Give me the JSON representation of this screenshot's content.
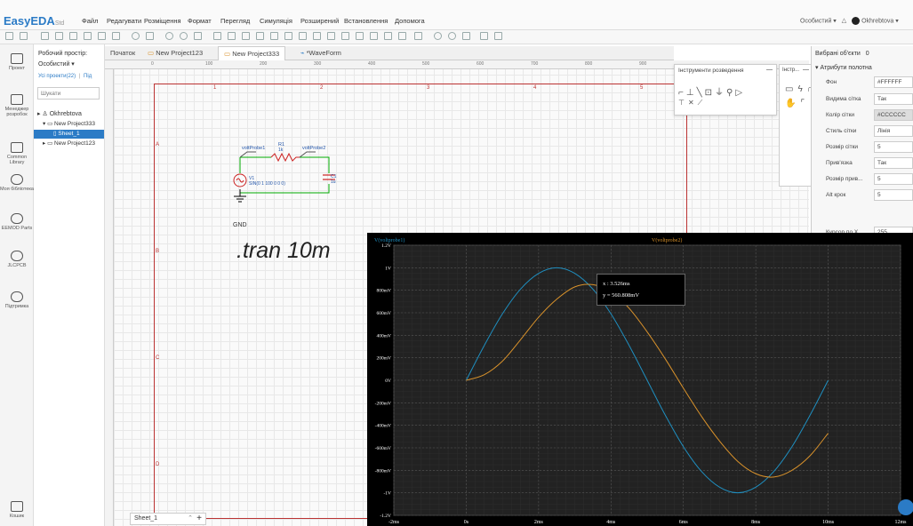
{
  "app": {
    "logo": "EasyEDA",
    "logo_sub": "Std",
    "menu": [
      "Файл",
      "Редагувати",
      "Розміщення",
      "Формат",
      "Перегляд",
      "Симуляція",
      "Розширений",
      "Встановлення",
      "Допомога"
    ],
    "user_menu": "Особистий ▾",
    "user_name": "Okhrebtova ▾"
  },
  "leftbar": [
    {
      "label": "Проект",
      "icon": "project-icon"
    },
    {
      "label": "Менеджер розробок",
      "icon": "design-manager-icon"
    },
    {
      "label": "Common Library",
      "icon": "common-library-icon"
    },
    {
      "label": "Моя бібліотека",
      "icon": "my-library-icon"
    },
    {
      "label": "EEMOD Parts",
      "icon": "parts-icon"
    },
    {
      "label": "JLCPCB",
      "icon": "jlcpcb-icon"
    },
    {
      "label": "Підтримка",
      "icon": "support-icon"
    },
    {
      "label": "Кошик",
      "icon": "trash-icon"
    }
  ],
  "panel": {
    "workspace_label": "Робочий простір:",
    "workspace_value": "Особистий ▾",
    "projects_link": "Усі проекти(22)",
    "sep": "|",
    "new_link": "Під",
    "search_placeholder": "Шукати",
    "tree": [
      {
        "label": "Okhrebtova",
        "level": 0
      },
      {
        "label": "New Project333",
        "level": 1
      },
      {
        "label": "Sheet_1",
        "level": 2,
        "selected": true
      },
      {
        "label": "New Project123",
        "level": 1
      }
    ]
  },
  "tabs": [
    "Початок",
    "New Project123",
    "New Project333",
    "*WaveForm"
  ],
  "active_tab": 2,
  "ruler_top": [
    "0",
    "100",
    "200",
    "300",
    "400",
    "500",
    "600",
    "700",
    "800",
    "900"
  ],
  "frame_numbers": [
    "1",
    "2",
    "3",
    "4",
    "5"
  ],
  "frame_letters": [
    "A",
    "B",
    "C",
    "D"
  ],
  "schematic": {
    "probe1": "voltProbe1",
    "probe2": "voltProbe2",
    "r_label": "R1",
    "r_value": "1k",
    "v_label": "V1",
    "v_value": "SIN(0 1 100 0 0 0)",
    "c_label": "C1",
    "c_value": "1u",
    "gnd": "GND",
    "directive": ".tran 10m"
  },
  "sheetbar": {
    "label": "Sheet_1",
    "add": "+"
  },
  "wiretools": {
    "title": "Інструменти розведення",
    "close": "—"
  },
  "drawtools": {
    "title": "Інстр...",
    "close": "—"
  },
  "rpanel": {
    "title": "Вибрані об'єкти",
    "count": "0",
    "section": "Атрибути полотна",
    "rows": [
      {
        "label": "Фон",
        "value": "#FFFFFF"
      },
      {
        "label": "Видима сітка",
        "value": "Так"
      },
      {
        "label": "Колір сітки",
        "value": "#CCCCCC"
      },
      {
        "label": "Стиль сітки",
        "value": "Лінія"
      },
      {
        "label": "Розмір сітки",
        "value": "5"
      },
      {
        "label": "Прив'язка",
        "value": "Так"
      },
      {
        "label": "Розмір прив...",
        "value": "5"
      },
      {
        "label": "Alt крок",
        "value": "5"
      }
    ],
    "cursor_label": "Курсор по X",
    "cursor_value": "255"
  },
  "wave": {
    "legend1": "V(voltprobe1)",
    "legend2": "V(voltprobe2)",
    "tooltip_x": "x : 3.526ms",
    "tooltip_y": "y = 560.808mV"
  },
  "chart_data": {
    "type": "line",
    "xlabel": "",
    "ylabel": "",
    "xlim": [
      -2,
      12
    ],
    "ylim": [
      -1.2,
      1.2
    ],
    "x_ticks": [
      "-2ms",
      "0s",
      "2ms",
      "4ms",
      "6ms",
      "8ms",
      "10ms",
      "12ms"
    ],
    "x_tick_values": [
      -2,
      0,
      2,
      4,
      6,
      8,
      10,
      12
    ],
    "y_ticks": [
      "1.2V",
      "1V",
      "800mV",
      "600mV",
      "400mV",
      "200mV",
      "0V",
      "-200mV",
      "-400mV",
      "-600mV",
      "-800mV",
      "-1V",
      "-1.2V"
    ],
    "y_tick_values": [
      1.2,
      1,
      0.8,
      0.6,
      0.4,
      0.2,
      0,
      -0.2,
      -0.4,
      -0.6,
      -0.8,
      -1,
      -1.2
    ],
    "series": [
      {
        "name": "V(voltprobe1)",
        "color": "#1f8fc0",
        "x": [
          0,
          0.5,
          1,
          1.5,
          2,
          2.5,
          3,
          3.5,
          4,
          4.5,
          5,
          5.5,
          6,
          6.5,
          7,
          7.5,
          8,
          8.5,
          9,
          9.5,
          10
        ],
        "y": [
          0,
          0.31,
          0.59,
          0.81,
          0.95,
          1,
          0.95,
          0.81,
          0.59,
          0.31,
          0,
          -0.31,
          -0.59,
          -0.81,
          -0.95,
          -1,
          -0.95,
          -0.81,
          -0.59,
          -0.31,
          0
        ]
      },
      {
        "name": "V(voltprobe2)",
        "color": "#d9922b",
        "x": [
          0,
          0.5,
          1,
          1.5,
          2,
          2.5,
          3,
          3.5,
          4,
          4.5,
          5,
          5.5,
          6,
          6.5,
          7,
          7.5,
          8,
          8.5,
          9,
          9.5,
          10
        ],
        "y": [
          0,
          0.05,
          0.17,
          0.36,
          0.56,
          0.72,
          0.83,
          0.85,
          0.79,
          0.64,
          0.43,
          0.19,
          -0.07,
          -0.32,
          -0.54,
          -0.72,
          -0.83,
          -0.86,
          -0.8,
          -0.67,
          -0.47
        ]
      }
    ]
  }
}
